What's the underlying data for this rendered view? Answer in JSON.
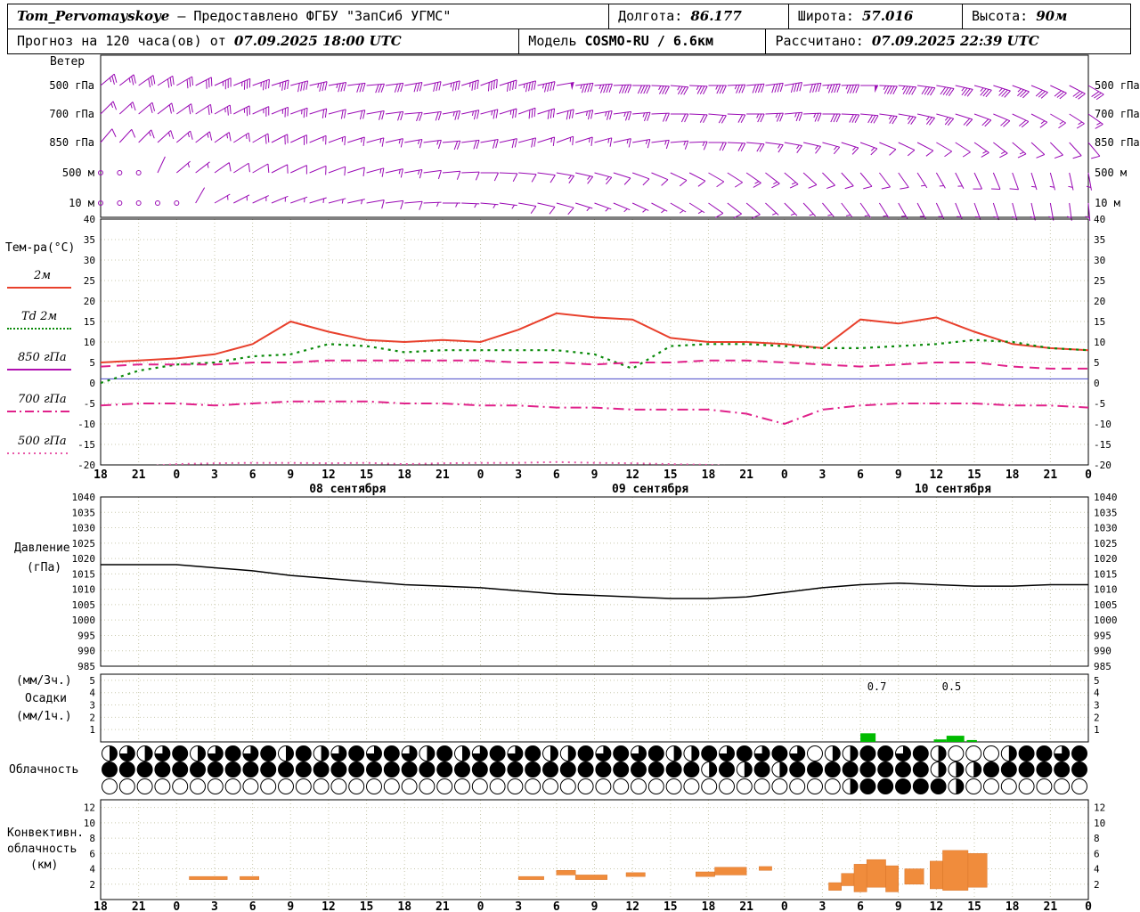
{
  "header": {
    "station": "Tom_Pervomayskoye",
    "provider": "– Предоставлено ФГБУ \"ЗапСиб УГМС\"",
    "lon_label": "Долгота:",
    "lon_value": "86.177",
    "lat_label": "Широта:",
    "lat_value": "57.016",
    "alt_label": "Высота:",
    "alt_value": "90м",
    "forecast_label": "Прогноз на 120 часа(ов) от",
    "forecast_time": "07.09.2025 18:00 UTC",
    "model_label": "Модель",
    "model_value": "COSMO-RU / 6.6км",
    "calc_label": "Рассчитано:",
    "calc_time": "07.09.2025 22:39 UTC"
  },
  "labels": {
    "wind": "Ветер",
    "temp_title": "Тем-ра(°C)",
    "t2m": "2м",
    "td2m": "Td 2м",
    "t850": "850 гПа",
    "t700": "700 гПа",
    "t500": "500 гПа",
    "pressure1": "Давление",
    "pressure2": "(гПа)",
    "prec1": "(мм/3ч.)",
    "prec2": "Осадки",
    "prec3": "(мм/1ч.)",
    "cloud": "Облачность",
    "conv1": "Конвективн.",
    "conv2": "облачность",
    "conv3": "(км)"
  },
  "x_axis": {
    "tick_step_hours": 3,
    "tick_labels": [
      "18",
      "21",
      "0",
      "3",
      "6",
      "9",
      "12",
      "15",
      "18",
      "21",
      "0",
      "3",
      "6",
      "9",
      "12",
      "15",
      "18",
      "21",
      "0",
      "3",
      "6",
      "9",
      "12",
      "15",
      "18",
      "21",
      "0"
    ],
    "dates": [
      {
        "hc": 19.5,
        "label": "08 сентября"
      },
      {
        "hc": 43.4,
        "label": "09 сентября"
      },
      {
        "hc": 67.3,
        "label": "10 сентября"
      }
    ]
  },
  "chart_data": [
    {
      "name": "wind-barbs",
      "type": "barbs",
      "title": "Ветер",
      "color": "#9909b4",
      "levels": [
        "500 гПа",
        "700 гПа",
        "850 гПа",
        "500 м",
        "10 м"
      ],
      "x_hours_step": 3,
      "series": [
        {
          "name": "500 гПа",
          "dir": [
            50,
            55,
            60,
            65,
            70,
            75,
            80,
            85,
            80,
            75,
            70,
            75,
            80,
            85,
            90,
            95,
            90,
            85,
            80,
            85,
            90,
            95,
            100,
            105,
            110,
            115,
            120
          ],
          "speed": [
            25,
            30,
            30,
            35,
            35,
            40,
            35,
            30,
            30,
            35,
            40,
            45,
            50,
            45,
            40,
            35,
            35,
            40,
            40,
            45,
            50,
            45,
            40,
            35,
            35,
            30,
            30
          ]
        },
        {
          "name": "700 гПа",
          "dir": [
            45,
            50,
            55,
            60,
            65,
            70,
            75,
            80,
            85,
            80,
            75,
            70,
            75,
            80,
            85,
            90,
            95,
            90,
            85,
            90,
            95,
            100,
            105,
            110,
            115,
            120,
            125
          ],
          "speed": [
            15,
            20,
            20,
            25,
            25,
            25,
            20,
            20,
            20,
            25,
            25,
            30,
            30,
            25,
            25,
            20,
            20,
            25,
            25,
            30,
            30,
            25,
            25,
            20,
            20,
            15,
            15
          ]
        },
        {
          "name": "850 гПа",
          "dir": [
            40,
            45,
            50,
            55,
            60,
            65,
            70,
            75,
            80,
            85,
            80,
            75,
            70,
            75,
            80,
            85,
            90,
            95,
            100,
            105,
            110,
            115,
            120,
            125,
            130,
            135,
            140
          ],
          "speed": [
            10,
            15,
            15,
            15,
            20,
            20,
            15,
            15,
            15,
            20,
            20,
            20,
            15,
            15,
            15,
            15,
            20,
            20,
            15,
            15,
            15,
            10,
            10,
            15,
            15,
            10,
            10
          ]
        },
        {
          "name": "500 м",
          "dir": [
            0,
            0,
            50,
            55,
            60,
            65,
            70,
            75,
            80,
            85,
            90,
            95,
            100,
            105,
            110,
            115,
            120,
            125,
            130,
            135,
            140,
            145,
            150,
            155,
            160,
            165,
            170
          ],
          "speed": [
            0,
            0,
            5,
            10,
            10,
            10,
            10,
            15,
            15,
            10,
            10,
            10,
            15,
            15,
            10,
            10,
            10,
            15,
            15,
            10,
            10,
            10,
            5,
            10,
            10,
            5,
            5
          ]
        },
        {
          "name": "10 м",
          "dir": [
            0,
            0,
            0,
            60,
            65,
            70,
            75,
            80,
            85,
            90,
            95,
            100,
            105,
            110,
            115,
            120,
            125,
            130,
            135,
            140,
            145,
            150,
            155,
            160,
            165,
            170,
            175
          ],
          "speed": [
            0,
            0,
            0,
            5,
            5,
            5,
            5,
            10,
            10,
            5,
            5,
            10,
            10,
            5,
            5,
            5,
            10,
            10,
            5,
            5,
            5,
            5,
            5,
            5,
            5,
            5,
            5
          ]
        }
      ]
    },
    {
      "name": "temperature",
      "type": "line",
      "title": "Тем-ра(°C)",
      "ylim": [
        -20,
        40
      ],
      "ytick_step": 5,
      "yticks": [
        40,
        35,
        30,
        25,
        20,
        15,
        10,
        5,
        0,
        -5,
        -10,
        -15,
        -20
      ],
      "zero_line": {
        "value": 1,
        "color": "#4848c8"
      },
      "x_hours_step": 3,
      "series": [
        {
          "name": "2м",
          "color": "#e8402c",
          "style": "solid",
          "width": 2,
          "values": [
            5,
            5.5,
            6,
            7,
            9.5,
            15,
            12.5,
            10.5,
            10,
            10.5,
            10,
            13,
            17,
            16,
            15.5,
            11,
            10,
            10,
            9.5,
            8.5,
            15.5,
            14.5,
            16,
            12.5,
            9.5,
            8.5,
            8
          ]
        },
        {
          "name": "Td 2м",
          "color": "#0a8a0a",
          "style": "dotted",
          "width": 2.2,
          "values": [
            0,
            3,
            4.5,
            5,
            6.5,
            7,
            9.5,
            9,
            7.5,
            8,
            8,
            8,
            8,
            7,
            3.5,
            9,
            9.5,
            9.5,
            9,
            8.5,
            8.5,
            9,
            9.5,
            10.5,
            10,
            8.5,
            8
          ]
        },
        {
          "name": "850 гПа",
          "color": "#e0218a",
          "style": "dashed",
          "width": 2,
          "values": [
            4,
            4.5,
            4.5,
            4.5,
            5,
            5,
            5.5,
            5.5,
            5.5,
            5.5,
            5.5,
            5,
            5,
            4.5,
            5,
            5,
            5.5,
            5.5,
            5,
            4.5,
            4,
            4.5,
            5,
            5,
            4,
            3.5,
            3.5
          ]
        },
        {
          "name": "700 гПа",
          "color": "#e0218a",
          "style": "dashdot",
          "width": 2,
          "values": [
            -5.5,
            -5,
            -5,
            -5.5,
            -5,
            -4.5,
            -4.5,
            -4.5,
            -5,
            -5,
            -5.5,
            -5.5,
            -6,
            -6,
            -6.5,
            -6.5,
            -6.5,
            -7.5,
            -10,
            -6.5,
            -5.5,
            -5,
            -5,
            -5,
            -5.5,
            -5.5,
            -6
          ]
        },
        {
          "name": "500 гПа",
          "color": "#e858a8",
          "style": "finedot",
          "width": 2,
          "values": [
            -21,
            -20.5,
            -19.8,
            -19.6,
            -19.5,
            -19.5,
            -19.6,
            -19.5,
            -19.8,
            -19.6,
            -19.5,
            -19.5,
            -19.3,
            -19.5,
            -19.6,
            -19.8,
            -20,
            -20.5,
            -21,
            -21.2,
            -21,
            -21,
            -21.2,
            -21,
            -21,
            -21.2,
            -21
          ]
        }
      ]
    },
    {
      "name": "pressure",
      "type": "line",
      "title": "Давление (гПа)",
      "ylim": [
        985,
        1040
      ],
      "yticks": [
        1040,
        1035,
        1030,
        1025,
        1020,
        1015,
        1010,
        1005,
        1000,
        995,
        990,
        985
      ],
      "x_hours_step": 3,
      "series": [
        {
          "name": "Давление",
          "color": "#000000",
          "style": "solid",
          "width": 1.5,
          "values": [
            1018,
            1018,
            1018,
            1017,
            1016,
            1014.5,
            1013.5,
            1012.5,
            1011.5,
            1011,
            1010.5,
            1009.5,
            1008.5,
            1008,
            1007.5,
            1007,
            1007,
            1007.5,
            1009,
            1010.5,
            1011.5,
            1012,
            1011.5,
            1011,
            1011,
            1011.5,
            1011.5
          ]
        }
      ]
    },
    {
      "name": "precipitation",
      "type": "bar",
      "title": "Осадки (мм/3ч. / мм/1ч.)",
      "ylim": [
        0,
        5.5
      ],
      "yticks": [
        5,
        4,
        3,
        2,
        1
      ],
      "color": "#00bb00",
      "bars": [
        {
          "h": 60,
          "w": 1.2,
          "v": 0.7
        },
        {
          "h": 65.8,
          "w": 1.0,
          "v": 0.2
        },
        {
          "h": 66.8,
          "w": 1.4,
          "v": 0.5
        },
        {
          "h": 68.4,
          "w": 0.8,
          "v": 0.15
        }
      ],
      "value_labels": [
        {
          "h": 61.3,
          "text": "0.7"
        },
        {
          "h": 67.2,
          "text": "0.5"
        }
      ]
    },
    {
      "name": "cloudiness",
      "type": "heatmap",
      "title": "Облачность",
      "legend": "okta eighths 0-8 per symbol, three levels top/mid/low",
      "rows": [
        "46468468684846868648468684486868448686860448868400048868",
        "88888888888888888888888888888888884848488888888444888888",
        "00000000000000000000000000000000000000000048888840000000"
      ]
    },
    {
      "name": "convective-cloudiness",
      "type": "bar",
      "title": "Конвективная облачность (км)",
      "ylim": [
        0,
        13
      ],
      "yticks": [
        12,
        10,
        8,
        6,
        4,
        2
      ],
      "color": "#f08c3c",
      "segments": [
        {
          "h": 7,
          "w": 3,
          "b": 2.6,
          "t": 3
        },
        {
          "h": 11,
          "w": 1.5,
          "b": 2.6,
          "t": 3
        },
        {
          "h": 33,
          "w": 2,
          "b": 2.6,
          "t": 3
        },
        {
          "h": 36,
          "w": 1.5,
          "b": 3.2,
          "t": 3.8
        },
        {
          "h": 37.5,
          "w": 2.5,
          "b": 2.6,
          "t": 3.2
        },
        {
          "h": 41.5,
          "w": 1.5,
          "b": 3,
          "t": 3.5
        },
        {
          "h": 47,
          "w": 1.5,
          "b": 3,
          "t": 3.6
        },
        {
          "h": 48.5,
          "w": 2.5,
          "b": 3.2,
          "t": 4.2
        },
        {
          "h": 52,
          "w": 1,
          "b": 3.8,
          "t": 4.3
        },
        {
          "h": 57.5,
          "w": 1,
          "b": 1.2,
          "t": 2.2
        },
        {
          "h": 58.5,
          "w": 1,
          "b": 1.8,
          "t": 3.4
        },
        {
          "h": 59.5,
          "w": 1,
          "b": 1,
          "t": 4.6
        },
        {
          "h": 60.5,
          "w": 1.5,
          "b": 1.6,
          "t": 5.2
        },
        {
          "h": 62,
          "w": 1,
          "b": 1,
          "t": 4.4
        },
        {
          "h": 63.5,
          "w": 1.5,
          "b": 2,
          "t": 4
        },
        {
          "h": 65.5,
          "w": 1,
          "b": 1.4,
          "t": 5
        },
        {
          "h": 66.5,
          "w": 2,
          "b": 1.2,
          "t": 6.4
        },
        {
          "h": 68.5,
          "w": 1.5,
          "b": 1.6,
          "t": 6
        }
      ]
    }
  ]
}
